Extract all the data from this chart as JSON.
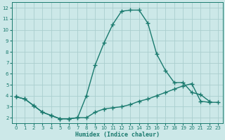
{
  "xlabel": "Humidex (Indice chaleur)",
  "x_upper": [
    0,
    1,
    2,
    3,
    4,
    5,
    6,
    7,
    8,
    9,
    10,
    11,
    12,
    13,
    14,
    15,
    16,
    17,
    18,
    19,
    20,
    21,
    22
  ],
  "upper": [
    3.9,
    3.7,
    3.1,
    2.5,
    2.2,
    1.9,
    1.9,
    2.0,
    4.0,
    6.8,
    8.8,
    10.5,
    11.7,
    11.8,
    11.8,
    10.6,
    7.8,
    6.3,
    5.2,
    5.2,
    4.3,
    4.1,
    3.5
  ],
  "x_lower": [
    0,
    1,
    2,
    3,
    4,
    5,
    6,
    7,
    8,
    9,
    10,
    11,
    12,
    13,
    14,
    15,
    16,
    17,
    18,
    19,
    20,
    21,
    22,
    23
  ],
  "lower": [
    3.9,
    3.7,
    3.1,
    2.5,
    2.2,
    1.9,
    1.9,
    2.0,
    2.0,
    2.5,
    2.8,
    2.9,
    3.0,
    3.2,
    3.5,
    3.7,
    4.0,
    4.3,
    4.6,
    4.9,
    5.1,
    3.5,
    3.4,
    3.4
  ],
  "line_color": "#1a7a6e",
  "bg_color": "#cce8e8",
  "grid_color": "#aacece",
  "ylim": [
    1.5,
    12.5
  ],
  "xlim": [
    -0.5,
    23.5
  ],
  "yticks": [
    2,
    3,
    4,
    5,
    6,
    7,
    8,
    9,
    10,
    11,
    12
  ],
  "xticks": [
    0,
    1,
    2,
    3,
    4,
    5,
    6,
    7,
    8,
    9,
    10,
    11,
    12,
    13,
    14,
    15,
    16,
    17,
    18,
    19,
    20,
    21,
    22,
    23
  ]
}
